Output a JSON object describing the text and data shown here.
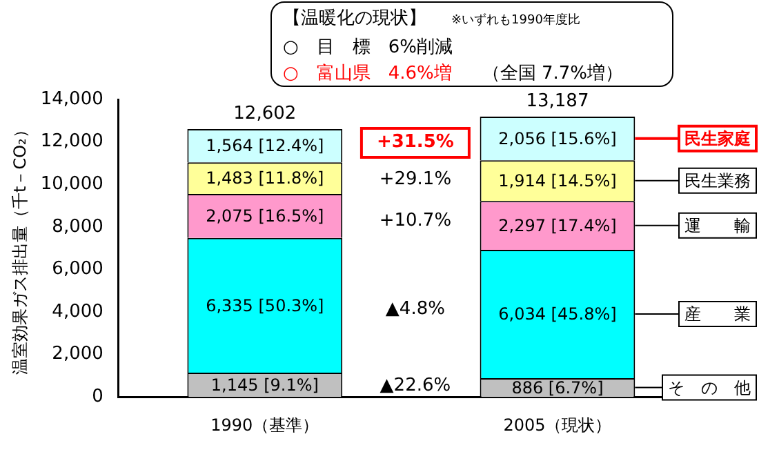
{
  "chart_data": {
    "type": "bar",
    "title": "【温暖化の現状】",
    "subtitle": "※いずれも1990年度比",
    "ylabel": "温室効果ガス排出量（千t－CO₂）",
    "categories": [
      "1990（基準）",
      "2005（現状）"
    ],
    "stacked": true,
    "legend": "right",
    "grid": false,
    "ylim": [
      0,
      14000
    ],
    "yticks": [
      {
        "value": 0,
        "label": "0"
      },
      {
        "value": 2000,
        "label": "2,000"
      },
      {
        "value": 4000,
        "label": "4,000"
      },
      {
        "value": 6000,
        "label": "6,000"
      },
      {
        "value": 8000,
        "label": "8,000"
      },
      {
        "value": 10000,
        "label": "10,000"
      },
      {
        "value": 12000,
        "label": "12,000"
      },
      {
        "value": 14000,
        "label": "14,000"
      }
    ],
    "series": [
      {
        "name": "そ　の　他",
        "color": "#c0c0c0",
        "values": [
          1145,
          886
        ],
        "value_labels": [
          "1,145 [9.1%]",
          "886 [6.7%]"
        ]
      },
      {
        "name": "産　　業",
        "color": "#00ffff",
        "values": [
          6335,
          6034
        ],
        "value_labels": [
          "6,335 [50.3%]",
          "6,034 [45.8%]"
        ]
      },
      {
        "name": "運　　輸",
        "color": "#ff99cc",
        "values": [
          2075,
          2297
        ],
        "value_labels": [
          "2,075 [16.5%]",
          "2,297 [17.4%]"
        ]
      },
      {
        "name": "民生業務",
        "color": "#ffff99",
        "values": [
          1483,
          1914
        ],
        "value_labels": [
          "1,483 [11.8%]",
          "1,914 [14.5%]"
        ]
      },
      {
        "name": "民生家庭",
        "color": "#ccffff",
        "values": [
          1564,
          2056
        ],
        "value_labels": [
          "1,564 [12.4%]",
          "2,056 [15.6%]"
        ]
      }
    ],
    "totals": [
      "12,602",
      "13,187"
    ],
    "annotations": [
      "○　目　標　6%削減",
      "○　富山県　4.6%増",
      "（全国 7.7%増）",
      "▲22.6%",
      "▲4.8%",
      "+10.7%",
      "+29.1%",
      "+31.5%"
    ]
  }
}
